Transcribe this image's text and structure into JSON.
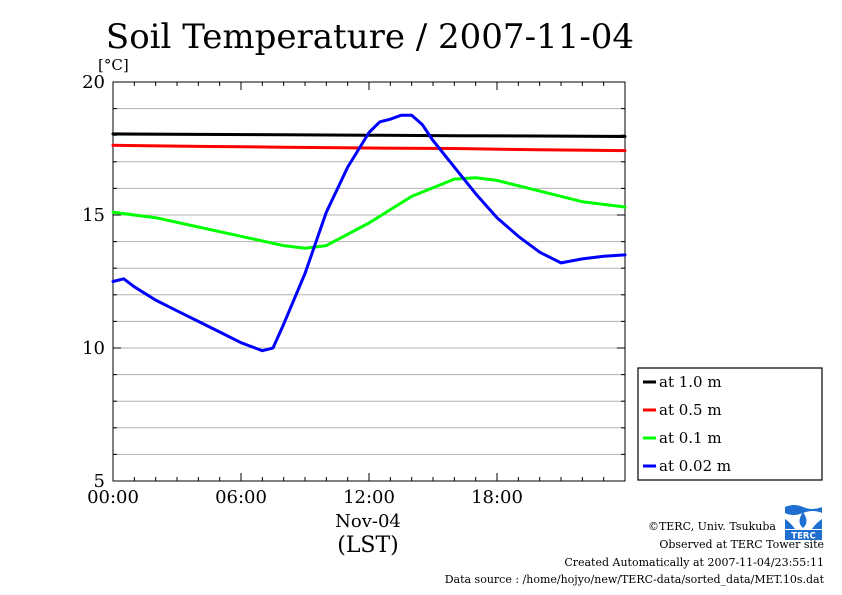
{
  "chart_data": {
    "type": "line",
    "title": "Soil Temperature / 2007-11-04",
    "y_unit": "[°C]",
    "ylim": [
      5,
      20
    ],
    "y_ticks": [
      5,
      10,
      15,
      20
    ],
    "y_tick_labels": [
      "5",
      "10",
      "15",
      "20"
    ],
    "xlim": [
      0,
      24
    ],
    "x_ticks": [
      0,
      6,
      12,
      18
    ],
    "x_tick_labels": [
      "00:00",
      "06:00",
      "12:00",
      "18:00"
    ],
    "x_date_label": "Nov-04",
    "xlabel": "(LST)",
    "grid": true,
    "legend_position": "right",
    "series": [
      {
        "name": "at 1.0 m",
        "color": "#000000",
        "x": [
          0,
          4,
          8,
          12,
          16,
          20,
          24
        ],
        "y": [
          18.05,
          18.03,
          18.02,
          18.0,
          17.98,
          17.97,
          17.95
        ]
      },
      {
        "name": "at 0.5 m",
        "color": "#ff0000",
        "x": [
          0,
          4,
          8,
          12,
          16,
          20,
          24
        ],
        "y": [
          17.62,
          17.58,
          17.55,
          17.52,
          17.5,
          17.45,
          17.42
        ]
      },
      {
        "name": "at 0.1 m",
        "color": "#00ff00",
        "x": [
          0,
          2,
          4,
          6,
          8,
          9,
          10,
          12,
          14,
          16,
          17,
          18,
          20,
          22,
          24
        ],
        "y": [
          15.1,
          14.9,
          14.55,
          14.2,
          13.85,
          13.75,
          13.85,
          14.7,
          15.7,
          16.35,
          16.4,
          16.3,
          15.9,
          15.5,
          15.3
        ]
      },
      {
        "name": "at 0.02 m",
        "color": "#0000ff",
        "x": [
          0,
          0.5,
          1,
          2,
          3,
          4,
          5,
          6,
          7,
          7.5,
          8,
          9,
          10,
          11,
          12,
          12.5,
          13,
          13.5,
          14,
          14.5,
          15,
          16,
          17,
          18,
          19,
          20,
          21,
          22,
          23,
          24
        ],
        "y": [
          12.5,
          12.6,
          12.3,
          11.8,
          11.4,
          11.0,
          10.6,
          10.2,
          9.9,
          10.0,
          10.9,
          12.8,
          15.1,
          16.8,
          18.1,
          18.5,
          18.6,
          18.75,
          18.75,
          18.4,
          17.8,
          16.8,
          15.8,
          14.9,
          14.2,
          13.6,
          13.2,
          13.35,
          13.45,
          13.5
        ]
      }
    ]
  },
  "credits": {
    "copyright": "©TERC, Univ. Tsukuba",
    "observed": "Observed at TERC Tower site",
    "created": "Created Automatically at 2007-11-04/23:55:11",
    "source": "Data source : /home/hojyo/new/TERC-data/sorted_data/MET.10s.dat"
  },
  "logo": {
    "text": "TERC",
    "color": "#1f6fd0"
  }
}
